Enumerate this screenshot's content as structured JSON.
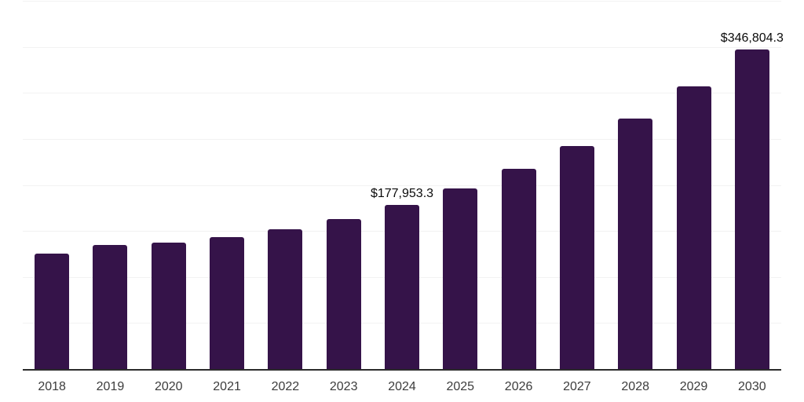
{
  "chart_data": {
    "type": "bar",
    "title": "",
    "xlabel": "",
    "ylabel": "",
    "categories": [
      "2018",
      "2019",
      "2020",
      "2021",
      "2022",
      "2023",
      "2024",
      "2025",
      "2026",
      "2027",
      "2028",
      "2029",
      "2030"
    ],
    "values": [
      125500,
      134900,
      137000,
      143400,
      151500,
      163000,
      177953.3,
      196300,
      217600,
      242400,
      272300,
      307300,
      346804.3
    ],
    "data_labels": [
      {
        "category": "2024",
        "text": "$177,953.3"
      },
      {
        "category": "2030",
        "text": "$346,804.3"
      }
    ],
    "ylim": [
      0,
      400000
    ],
    "gridline_interval": 50000,
    "grid": true,
    "legend": false,
    "colors": {
      "bar": "#351349",
      "axis": "#2B2B2B",
      "gridline": "#F2F2F2",
      "tick_label": "#3C3C3C",
      "data_label": "#0B0B0B",
      "background": "#FFFFFF"
    }
  }
}
